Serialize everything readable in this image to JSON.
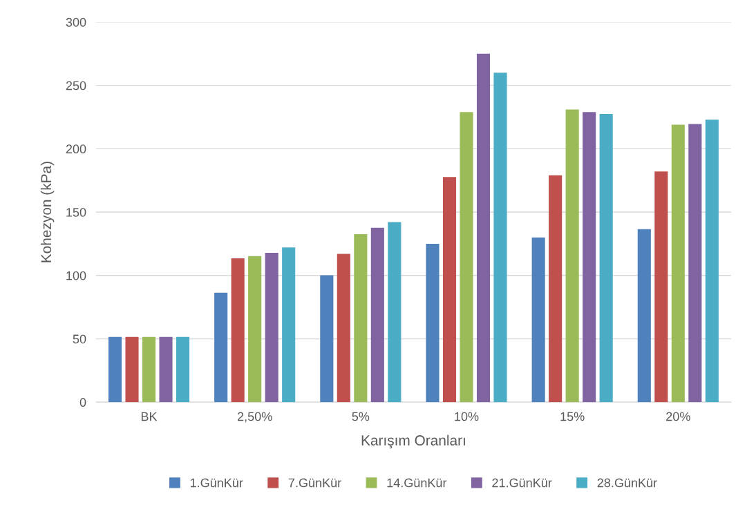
{
  "chart_data": {
    "type": "bar",
    "xlabel": "Karışım Oranları",
    "ylabel": "Kohezyon (kPa)",
    "categories": [
      "BK",
      "2,50%",
      "5%",
      "10%",
      "15%",
      "20%"
    ],
    "ylim": [
      0,
      300
    ],
    "yticks": [
      0,
      50,
      100,
      150,
      200,
      250,
      300
    ],
    "grid": "y",
    "legend": "bottom",
    "series": [
      {
        "name": "1.GünKür",
        "color": "#4f81bd",
        "values": [
          51.5,
          86.3,
          100.2,
          125,
          130,
          136.5
        ]
      },
      {
        "name": "7.GünKür",
        "color": "#c0504d",
        "values": [
          51.5,
          113.5,
          117,
          177.7,
          179,
          182
        ]
      },
      {
        "name": "14.GünKür",
        "color": "#9bbb59",
        "values": [
          51.5,
          115.2,
          132.6,
          229,
          231,
          219
        ]
      },
      {
        "name": "21.GünKür",
        "color": "#8064a2",
        "values": [
          51.5,
          117.8,
          137.6,
          275,
          229,
          219.6
        ]
      },
      {
        "name": "28.GünKür",
        "color": "#4bacc6",
        "values": [
          51.5,
          122.1,
          142.1,
          260,
          227.5,
          223
        ]
      }
    ]
  }
}
